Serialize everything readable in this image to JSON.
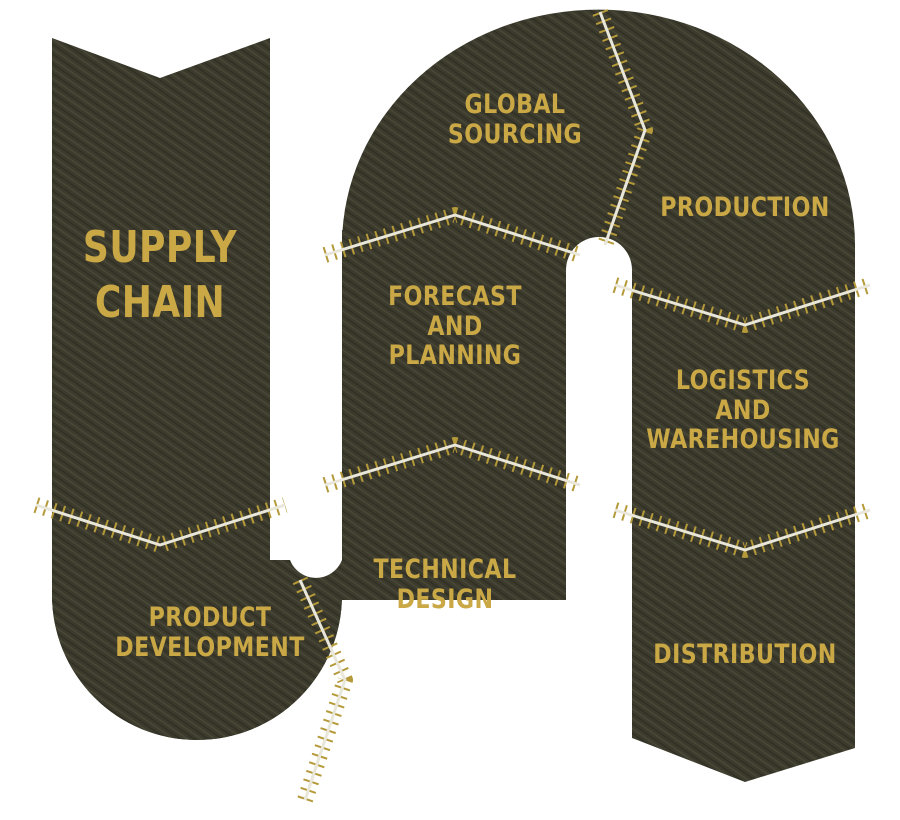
{
  "title": "SUPPLY\nCHAIN",
  "stages": [
    {
      "label": "PRODUCT\nDEVELOPMENT"
    },
    {
      "label": "TECHNICAL\nDESIGN"
    },
    {
      "label": "FORECAST\nAND\nPLANNING"
    },
    {
      "label": "GLOBAL\nSOURCING"
    },
    {
      "label": "PRODUCTION"
    },
    {
      "label": "LOGISTICS\nAND\nWAREHOUSING"
    },
    {
      "label": "DISTRIBUTION"
    }
  ],
  "colors": {
    "fabric": "#3a3a2b",
    "text": "#c9a845",
    "stitch": "#b59a3a",
    "seam": "#e9e6da"
  }
}
